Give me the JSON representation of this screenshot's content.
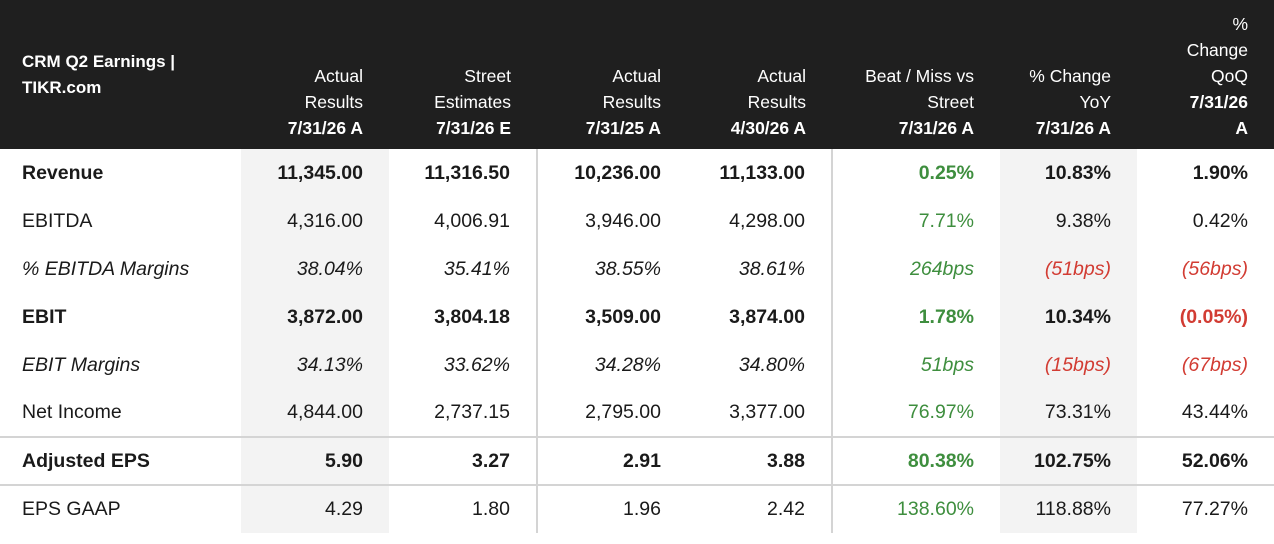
{
  "chart_data": {
    "type": "table",
    "title": "CRM Q2 Earnings | TIKR.com",
    "columns": [
      {
        "line1": "Actual",
        "line2": "Results",
        "date": "7/31/26 A"
      },
      {
        "line1": "Street",
        "line2": "Estimates",
        "date": "7/31/26 E"
      },
      {
        "line1": "Actual",
        "line2": "Results",
        "date": "7/31/25 A"
      },
      {
        "line1": "Actual",
        "line2": "Results",
        "date": "4/30/26 A"
      },
      {
        "line1": "Beat / Miss vs",
        "line2": "Street",
        "date": "7/31/26 A"
      },
      {
        "line1": "% Change",
        "line2": "YoY",
        "date": "7/31/26 A"
      },
      {
        "line1": "%",
        "line2": "Change",
        "line3": "QoQ",
        "date": "7/31/26",
        "date2": "A"
      }
    ],
    "rows": [
      {
        "label": "Revenue",
        "values": [
          "11,345.00",
          "11,316.50",
          "10,236.00",
          "11,133.00",
          "0.25%",
          "10.83%",
          "1.90%"
        ]
      },
      {
        "label": "EBITDA",
        "values": [
          "4,316.00",
          "4,006.91",
          "3,946.00",
          "4,298.00",
          "7.71%",
          "9.38%",
          "0.42%"
        ]
      },
      {
        "label": "% EBITDA Margins",
        "values": [
          "38.04%",
          "35.41%",
          "38.55%",
          "38.61%",
          "264bps",
          "(51bps)",
          "(56bps)"
        ]
      },
      {
        "label": "EBIT",
        "values": [
          "3,872.00",
          "3,804.18",
          "3,509.00",
          "3,874.00",
          "1.78%",
          "10.34%",
          "(0.05%)"
        ]
      },
      {
        "label": "EBIT Margins",
        "values": [
          "34.13%",
          "33.62%",
          "34.28%",
          "34.80%",
          "51bps",
          "(15bps)",
          "(67bps)"
        ]
      },
      {
        "label": "Net Income",
        "values": [
          "4,844.00",
          "2,737.15",
          "2,795.00",
          "3,377.00",
          "76.97%",
          "73.31%",
          "43.44%"
        ]
      },
      {
        "label": "Adjusted EPS",
        "values": [
          "5.90",
          "3.27",
          "2.91",
          "3.88",
          "80.38%",
          "102.75%",
          "52.06%"
        ]
      },
      {
        "label": "EPS GAAP",
        "values": [
          "4.29",
          "1.80",
          "1.96",
          "2.42",
          "138.60%",
          "118.88%",
          "77.27%"
        ]
      }
    ]
  },
  "colors": {
    "header_bg": "#1f1f1f",
    "beat": "#3e8e3e",
    "negative": "#d23c33",
    "shade": "#f3f3f3",
    "divider": "#d4d4d4"
  }
}
